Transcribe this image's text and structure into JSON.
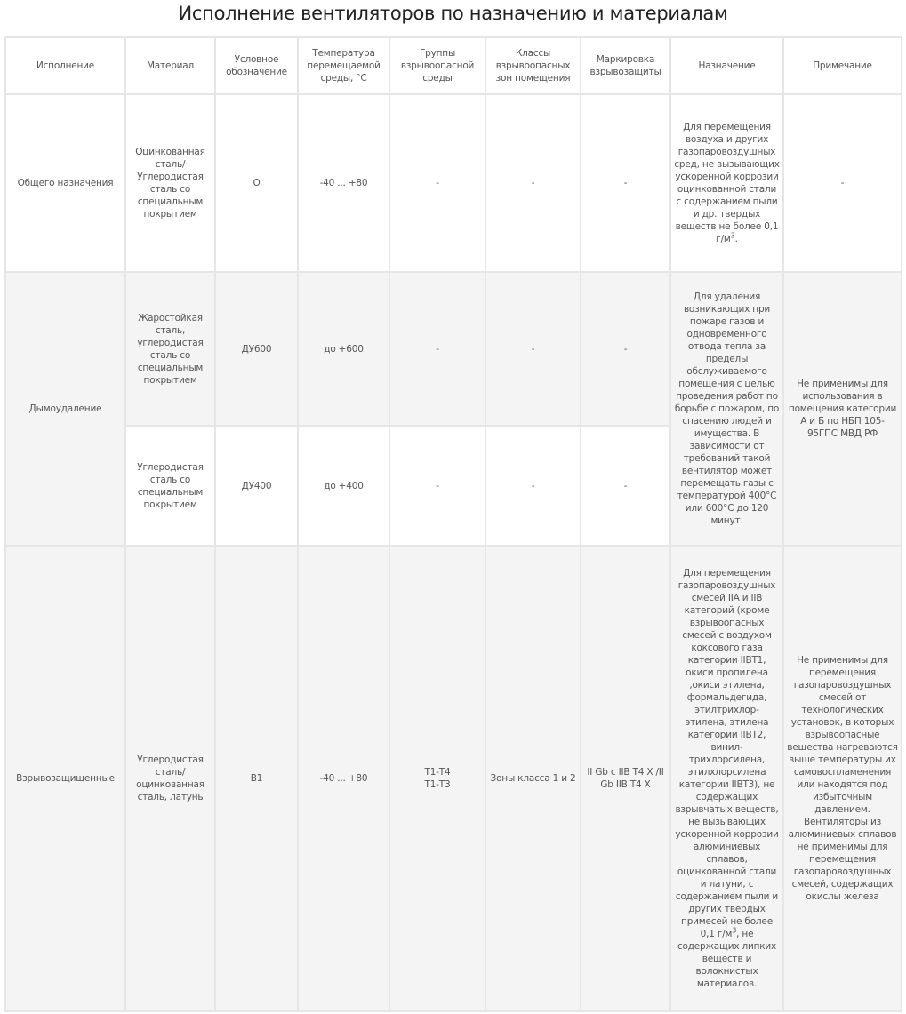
{
  "title": "Исполнение вентиляторов по назначению и материалам",
  "headers": [
    "Исполнение",
    "Материал",
    "Условное обозначение",
    "Температура перемещаемой среды, °С",
    "Группы взрывоопасной среды",
    "Классы взрывоопасных зон помещения",
    "Маркировка взрывозащиты",
    "Назначение",
    "Примечание"
  ],
  "rows": {
    "general": {
      "execution": "Общего назначения",
      "material": "Оцинкованная сталь/ Углеродистая сталь со специальным покрытием",
      "designation": "О",
      "temperature": "-40 ... +80",
      "groups": "-",
      "zones": "-",
      "marking": "-",
      "purpose": "Для перемещения воздуха и других газопаровоздушных сред, не вызывающих ускоренной коррозии оцинкованной стали с содержанием пыли и др. твердых веществ не более 0,1 г/м",
      "purpose_sup": "3",
      "purpose_end": ".",
      "note": "-"
    },
    "smoke": {
      "execution": "Дымоудаление",
      "sub1": {
        "material": "Жаростойкая сталь, углеродистая сталь  со специальным покрытием",
        "designation": "ДУ600",
        "temperature": "до +600",
        "groups": "-",
        "zones": "-",
        "marking": "-"
      },
      "sub2": {
        "material": "Углеродистая сталь со специальным покрытием",
        "designation": "ДУ400",
        "temperature": "до +400",
        "groups": "-",
        "zones": "-",
        "marking": "-"
      },
      "purpose": "Для удаления возникающих при пожаре газов и одновременного отвода тепла за пределы обслуживаемого помещения с целью проведения работ по борьбе с пожаром, по спасению людей и имущества. В зависимости от требований такой вентилятор может перемещать газы с температурой 400°С или 600°С до 120 минут.",
      "note": "Не применимы для использования в помещения категории А и Б по НБП 105-95ГПС МВД РФ"
    },
    "explosion": {
      "execution": "Взрывозащищенные",
      "material": "Углеродистая сталь/ оцинкованная сталь, латунь",
      "designation": "В1",
      "temperature": "-40 ... +80",
      "groups_1": "Т1-Т4",
      "groups_2": "Т1-Т3",
      "zones": "Зоны класса 1 и 2",
      "marking": "II Gb с IIB T4 X /II Gb  IIB T4 X",
      "purpose": "Для перемещения газопаровоздушных смесей IIA и IIB категорий (кроме взрывоопасных смесей с воздухом коксового газа категории  IIBT1, окиси пропилена ,окиси этилена, формальдегида, этилтрихлор-этилена, этилена категории IIBT2, винил-трихлорсилена, этилхлорсилена категории IIBT3), не содержащих взрывчатых веществ, не вызывающих ускоренной коррозии алюминиевых сплавов, оцинкованной стали и латуни, с содержанием пыли и других твердых примесей не более 0,1 г/м",
      "purpose_sup": "3",
      "purpose_end": ", не содержащих липких веществ и волокнистых материалов.",
      "note": "Не применимы для перемещения газопаровоздушных смесей от технологических установок, в которых взрывоопасные вещества нагреваются выше температуры их самовоспламенения или находятся под избыточным давлением. Вентиляторы из алюминиевых сплавов не применимы для перемещения газопаровоздушных смесей, содержащих окислы железа"
    }
  }
}
